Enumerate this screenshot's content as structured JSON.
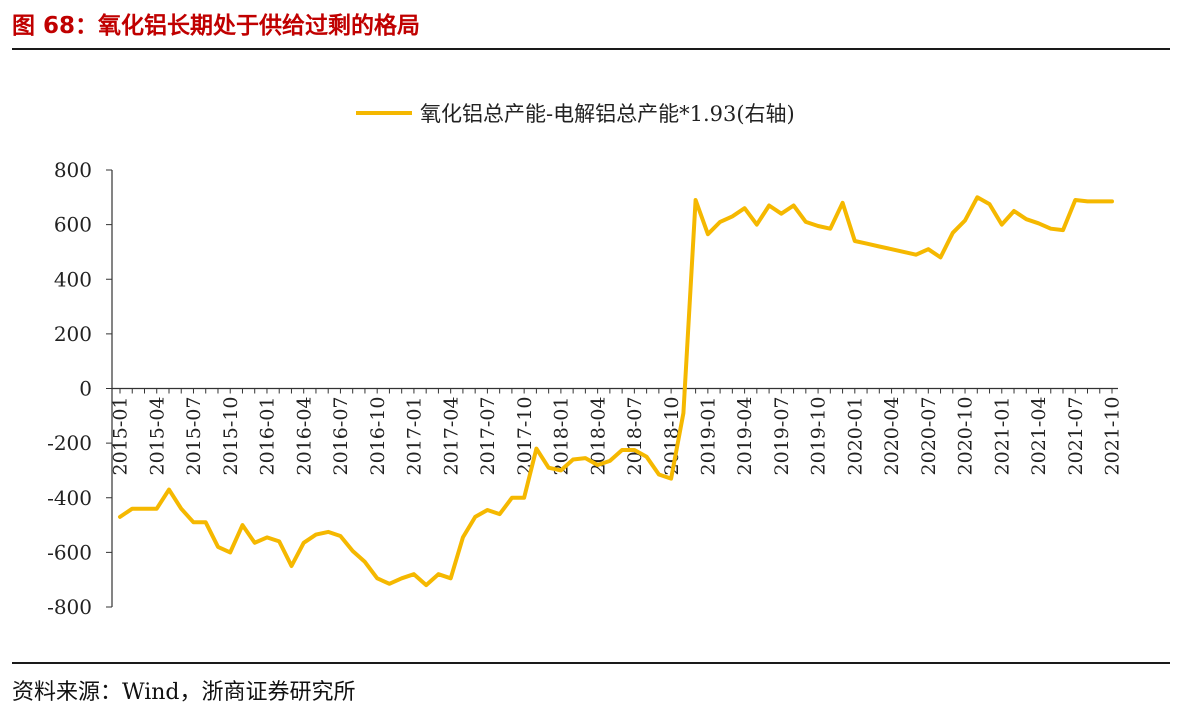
{
  "header": {
    "figure_title": "图 68：氧化铝长期处于供给过剩的格局"
  },
  "footer": {
    "source": "资料来源：Wind，浙商证券研究所"
  },
  "colors": {
    "title": "#c00000",
    "series": "#f5b800",
    "axis": "#333333",
    "text": "#222222"
  },
  "chart_data": {
    "type": "line",
    "title": "",
    "xlabel": "",
    "ylabel": "",
    "ylim": [
      -800,
      800
    ],
    "yticks": [
      800,
      600,
      400,
      200,
      0,
      -200,
      -400,
      -600,
      -800
    ],
    "grid": false,
    "legend_position": "top-center",
    "x_tick_labels": [
      "2015-01",
      "2015-04",
      "2015-07",
      "2015-10",
      "2016-01",
      "2016-04",
      "2016-07",
      "2016-10",
      "2017-01",
      "2017-04",
      "2017-07",
      "2017-10",
      "2018-01",
      "2018-04",
      "2018-07",
      "2018-10",
      "2019-01",
      "2019-04",
      "2019-07",
      "2019-10",
      "2020-01",
      "2020-04",
      "2020-07",
      "2020-10",
      "2021-01",
      "2021-04",
      "2021-07",
      "2021-10"
    ],
    "x": [
      "2015-01",
      "2015-02",
      "2015-03",
      "2015-04",
      "2015-05",
      "2015-06",
      "2015-07",
      "2015-08",
      "2015-09",
      "2015-10",
      "2015-11",
      "2015-12",
      "2016-01",
      "2016-02",
      "2016-03",
      "2016-04",
      "2016-05",
      "2016-06",
      "2016-07",
      "2016-08",
      "2016-09",
      "2016-10",
      "2016-11",
      "2016-12",
      "2017-01",
      "2017-02",
      "2017-03",
      "2017-04",
      "2017-05",
      "2017-06",
      "2017-07",
      "2017-08",
      "2017-09",
      "2017-10",
      "2017-11",
      "2017-12",
      "2018-01",
      "2018-02",
      "2018-03",
      "2018-04",
      "2018-05",
      "2018-06",
      "2018-07",
      "2018-08",
      "2018-09",
      "2018-10",
      "2018-11",
      "2018-12",
      "2019-01",
      "2019-02",
      "2019-03",
      "2019-04",
      "2019-05",
      "2019-06",
      "2019-07",
      "2019-08",
      "2019-09",
      "2019-10",
      "2019-11",
      "2019-12",
      "2020-01",
      "2020-02",
      "2020-03",
      "2020-04",
      "2020-05",
      "2020-06",
      "2020-07",
      "2020-08",
      "2020-09",
      "2020-10",
      "2020-11",
      "2020-12",
      "2021-01",
      "2021-02",
      "2021-03",
      "2021-04",
      "2021-05",
      "2021-06",
      "2021-07",
      "2021-08",
      "2021-09",
      "2021-10"
    ],
    "series": [
      {
        "name": "氧化铝总产能-电解铝总产能*1.93(右轴)",
        "values": [
          -470,
          -440,
          -440,
          -440,
          -370,
          -440,
          -490,
          -490,
          -580,
          -600,
          -500,
          -565,
          -545,
          -560,
          -650,
          -565,
          -535,
          -525,
          -540,
          -595,
          -635,
          -695,
          -715,
          -695,
          -680,
          -720,
          -680,
          -695,
          -545,
          -470,
          -445,
          -460,
          -400,
          -400,
          -220,
          -290,
          -300,
          -260,
          -255,
          -280,
          -265,
          -225,
          -225,
          -250,
          -315,
          -330,
          -90,
          690,
          565,
          610,
          630,
          660,
          600,
          670,
          640,
          670,
          610,
          595,
          585,
          680,
          540,
          530,
          520,
          510,
          500,
          490,
          510,
          480,
          570,
          615,
          700,
          675,
          600,
          650,
          620,
          605,
          585,
          580,
          690,
          685,
          685,
          685
        ]
      }
    ]
  }
}
